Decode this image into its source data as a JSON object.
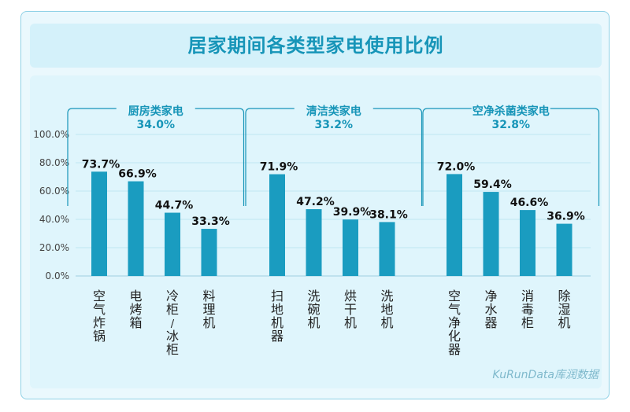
{
  "title": "居家期间各类型家电使用比例",
  "watermark": "KuRunData库润数据",
  "colors": {
    "bar": "#1a9cc0",
    "bracket": "#1795b8",
    "grid": "#bfe6f2",
    "title": "#1795b8"
  },
  "chart_data": {
    "type": "bar",
    "ylim": [
      0,
      100
    ],
    "yticks": [
      "0.0%",
      "20.0%",
      "40.0%",
      "60.0%",
      "80.0%",
      "100.0%"
    ],
    "grid": true,
    "groups": [
      {
        "name": "厨房类家电",
        "share": "34.0%",
        "categories": [
          "空气炸锅",
          "电烤箱",
          "冷柜/冰柜",
          "料理机"
        ],
        "values": [
          73.7,
          66.9,
          44.7,
          33.3
        ],
        "labels": [
          "73.7%",
          "66.9%",
          "44.7%",
          "33.3%"
        ]
      },
      {
        "name": "清洁类家电",
        "share": "33.2%",
        "categories": [
          "扫地机器",
          "洗碗机",
          "烘干机",
          "洗地机"
        ],
        "values": [
          71.9,
          47.2,
          39.9,
          38.1
        ],
        "labels": [
          "71.9%",
          "47.2%",
          "39.9%",
          "38.1%"
        ]
      },
      {
        "name": "空净杀菌类家电",
        "share": "32.8%",
        "categories": [
          "空气净化器",
          "净水器",
          "消毒柜",
          "除湿机"
        ],
        "values": [
          72.0,
          59.4,
          46.6,
          36.9
        ],
        "labels": [
          "72.0%",
          "59.4%",
          "46.6%",
          "36.9%"
        ]
      }
    ]
  }
}
